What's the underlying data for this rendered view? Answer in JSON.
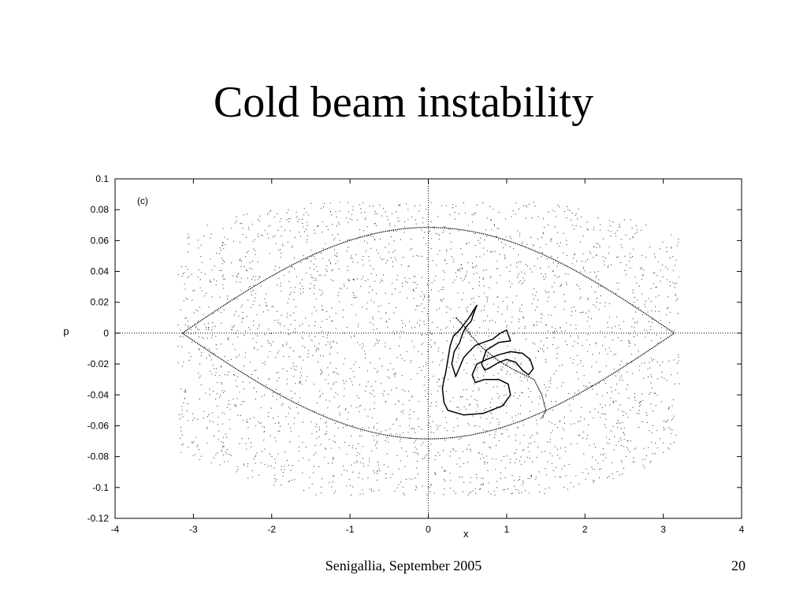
{
  "slide": {
    "title": "Cold beam instability",
    "footer_text": "Senigallia, September 2005",
    "page_number": "20"
  },
  "chart_data": {
    "type": "scatter",
    "panel_label": "(c)",
    "xlabel": "x",
    "ylabel": "p",
    "xlim": [
      -4,
      4
    ],
    "ylim": [
      -0.12,
      0.1
    ],
    "xticks": [
      -4,
      -3,
      -2,
      -1,
      0,
      1,
      2,
      3,
      4
    ],
    "yticks": [
      -0.12,
      -0.1,
      -0.08,
      -0.06,
      -0.04,
      -0.02,
      0,
      0.02,
      0.04,
      0.06,
      0.08,
      0.1
    ],
    "ytick_labels": [
      "-0.12",
      "-0.1",
      "-0.08",
      "-0.06",
      "-0.04",
      "-0.02",
      "0",
      "0.02",
      "0.04",
      "0.06",
      "0.08",
      "0.1"
    ],
    "xtick_labels": [
      "-4",
      "-3",
      "-2",
      "-1",
      "0",
      "1",
      "2",
      "3",
      "4"
    ],
    "zero_lines": true,
    "separatrix": {
      "x_range": [
        -3.1416,
        3.1416
      ],
      "p_max": 0.0685
    },
    "scatter_cloud": {
      "x_range": [
        -3.2,
        3.2
      ],
      "p_range": [
        -0.105,
        0.085
      ],
      "point_count": 3200
    },
    "cold_beam_curve": [
      [
        0.2,
        -0.045
      ],
      [
        0.25,
        -0.05
      ],
      [
        0.45,
        -0.053
      ],
      [
        0.7,
        -0.052
      ],
      [
        0.95,
        -0.047
      ],
      [
        1.05,
        -0.04
      ],
      [
        1.02,
        -0.033
      ],
      [
        0.9,
        -0.03
      ],
      [
        0.72,
        -0.03
      ],
      [
        0.6,
        -0.032
      ],
      [
        0.56,
        -0.027
      ],
      [
        0.62,
        -0.02
      ],
      [
        0.75,
        -0.017
      ],
      [
        0.9,
        -0.014
      ],
      [
        1.05,
        -0.012
      ],
      [
        1.2,
        -0.013
      ],
      [
        1.3,
        -0.017
      ],
      [
        1.34,
        -0.023
      ],
      [
        1.28,
        -0.027
      ],
      [
        1.2,
        -0.024
      ],
      [
        1.12,
        -0.019
      ],
      [
        1.0,
        -0.017
      ],
      [
        0.9,
        -0.019
      ],
      [
        0.8,
        -0.022
      ],
      [
        0.72,
        -0.024
      ],
      [
        0.68,
        -0.02
      ],
      [
        0.74,
        -0.011
      ],
      [
        0.9,
        -0.006
      ],
      [
        1.05,
        -0.005
      ],
      [
        1.0,
        0.002
      ],
      [
        0.92,
        0.0
      ],
      [
        0.82,
        -0.004
      ],
      [
        0.7,
        -0.006
      ],
      [
        0.6,
        -0.008
      ],
      [
        0.52,
        -0.012
      ],
      [
        0.45,
        -0.016
      ],
      [
        0.4,
        -0.022
      ],
      [
        0.35,
        -0.028
      ],
      [
        0.3,
        -0.02
      ],
      [
        0.33,
        -0.012
      ],
      [
        0.4,
        -0.006
      ],
      [
        0.44,
        0.0
      ],
      [
        0.48,
        0.004
      ],
      [
        0.55,
        0.008
      ],
      [
        0.58,
        0.013
      ],
      [
        0.62,
        0.018
      ],
      [
        0.58,
        0.015
      ],
      [
        0.52,
        0.01
      ],
      [
        0.46,
        0.006
      ],
      [
        0.4,
        0.002
      ],
      [
        0.32,
        -0.002
      ],
      [
        0.28,
        -0.008
      ],
      [
        0.26,
        -0.014
      ],
      [
        0.24,
        -0.02
      ],
      [
        0.22,
        -0.026
      ],
      [
        0.2,
        -0.03
      ],
      [
        0.18,
        -0.036
      ],
      [
        0.2,
        -0.045
      ]
    ],
    "cold_beam_tail": [
      [
        0.35,
        0.01
      ],
      [
        0.45,
        0.005
      ],
      [
        0.55,
        -0.002
      ],
      [
        0.7,
        -0.01
      ],
      [
        0.9,
        -0.018
      ],
      [
        1.1,
        -0.024
      ],
      [
        1.35,
        -0.03
      ],
      [
        1.45,
        -0.04
      ],
      [
        1.5,
        -0.05
      ],
      [
        1.45,
        -0.055
      ]
    ]
  }
}
